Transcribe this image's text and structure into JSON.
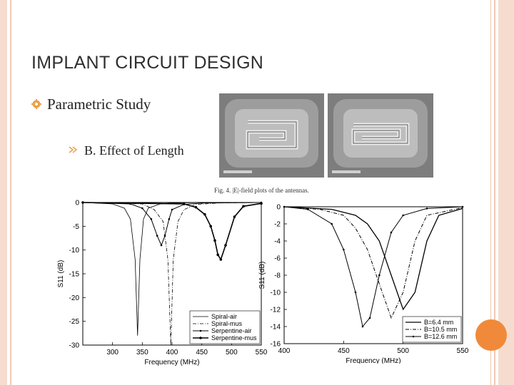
{
  "slide": {
    "title": "IMPLANT  CIRCUIT DESIGN",
    "bullet_1": "Parametric Study",
    "bullet_2": "B. Effect of Length",
    "accent_color": "#f08a3a",
    "border_color": "#f6dccf"
  },
  "figure": {
    "caption": "Fig. 4.   |E|-field plots of the antennas."
  },
  "chart_data": [
    {
      "type": "line",
      "xlabel": "Frequency (MHz)",
      "ylabel": "S11 (dB)",
      "xlim": [
        250,
        550
      ],
      "ylim": [
        -30,
        0
      ],
      "xticks": [
        "300",
        "350",
        "400",
        "450",
        "500",
        "550"
      ],
      "yticks": [
        "0",
        "-5",
        "-10",
        "-15",
        "-20",
        "-25",
        "-30"
      ],
      "legend_position": "bottom-right",
      "series": [
        {
          "name": "Spiral-air",
          "x": [
            250,
            300,
            320,
            330,
            338,
            342,
            346,
            352,
            360,
            380,
            400,
            450,
            550
          ],
          "y": [
            0,
            -0.3,
            -1.2,
            -3.5,
            -12,
            -28,
            -12,
            -3.5,
            -1.2,
            -0.3,
            -0.1,
            0,
            0
          ]
        },
        {
          "name": "Spiral-mus",
          "x": [
            250,
            350,
            370,
            385,
            393,
            398,
            402,
            410,
            420,
            440,
            480,
            550
          ],
          "y": [
            0,
            -0.3,
            -1.5,
            -4,
            -12,
            -30,
            -12,
            -4,
            -1.5,
            -0.4,
            -0.1,
            0
          ]
        },
        {
          "name": "Serpentine-air",
          "x": [
            250,
            330,
            350,
            365,
            375,
            382,
            388,
            395,
            400,
            420,
            450,
            550
          ],
          "y": [
            0,
            -0.3,
            -1.2,
            -3.5,
            -7,
            -9,
            -7,
            -3.5,
            -1.5,
            -0.4,
            -0.1,
            0
          ]
        },
        {
          "name": "Serpentine-mus",
          "x": [
            250,
            420,
            440,
            455,
            465,
            472,
            477,
            482,
            490,
            505,
            520,
            550
          ],
          "y": [
            0,
            -0.3,
            -1,
            -2.5,
            -5,
            -8,
            -11,
            -12,
            -9,
            -3,
            -0.8,
            -0.2
          ]
        }
      ]
    },
    {
      "type": "line",
      "xlabel": "Frequency (MHz)",
      "ylabel": "S11 (dB)",
      "xlim": [
        400,
        550
      ],
      "ylim": [
        -16,
        0
      ],
      "xticks": [
        "400",
        "450",
        "500",
        "550"
      ],
      "yticks": [
        "0",
        "-2",
        "-4",
        "-6",
        "-8",
        "-10",
        "-12",
        "-14",
        "-16"
      ],
      "legend_position": "bottom-right",
      "series": [
        {
          "name": "B=6.4 mm",
          "x": [
            400,
            440,
            460,
            470,
            480,
            490,
            500,
            510,
            520,
            530,
            550
          ],
          "y": [
            0,
            -0.3,
            -1,
            -2,
            -4,
            -8,
            -12,
            -10,
            -4,
            -1,
            -0.2
          ]
        },
        {
          "name": "B=10.5 mm",
          "x": [
            400,
            430,
            450,
            460,
            470,
            480,
            490,
            500,
            510,
            520,
            550
          ],
          "y": [
            0,
            -0.3,
            -1,
            -2.5,
            -5,
            -9,
            -13,
            -10,
            -4,
            -1,
            -0.1
          ]
        },
        {
          "name": "B=12.6 mm",
          "x": [
            400,
            420,
            440,
            450,
            460,
            466,
            472,
            480,
            490,
            500,
            520,
            550
          ],
          "y": [
            0,
            -0.3,
            -2,
            -5,
            -10,
            -14,
            -13,
            -8,
            -3,
            -1,
            -0.2,
            0
          ]
        }
      ]
    }
  ]
}
